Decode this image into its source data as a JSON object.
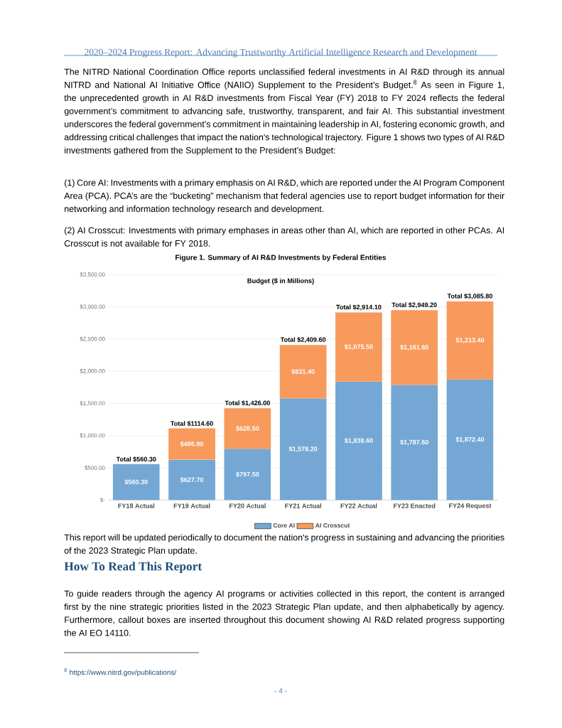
{
  "chart_data": {
    "type": "bar",
    "title": "Figure 1.   Summary of AI R&D Investments by Federal Entities",
    "subtitle": "Budget ($ in Millions)",
    "categories": [
      "FY18 Actual",
      "FY19 Actual",
      "FY20 Actual",
      "FY21 Actual",
      "FY22 Actual",
      "FY23 Enacted",
      "FY24 Request"
    ],
    "stacked": true,
    "series": [
      {
        "name": "Core AI",
        "color": "#74a7d4",
        "values": [
          560.3,
          627.7,
          797.5,
          1578.2,
          1838.6,
          1787.6,
          1872.4
        ],
        "value_labels": [
          "$560.30",
          "$627.70",
          "$797.50",
          "$1,578.20",
          "$1,838.60",
          "$1,787.60",
          "$1,872.40"
        ]
      },
      {
        "name": "AI Crosscut",
        "color": "#f79a5c",
        "values": [
          null,
          486.9,
          628.5,
          831.4,
          1075.5,
          1161.6,
          1213.4
        ],
        "value_labels": [
          null,
          "$486.90",
          "$628.50",
          "$831.40",
          "$1,075.50",
          "$1,161.60",
          "$1,213.40"
        ]
      }
    ],
    "totals": [
      "Total $560.30",
      "Total $1114.60",
      "Total $1,426.00",
      "Total $2,409.60",
      "Total $2,914.10",
      "Total $2,949.20",
      "Total $3,085.80"
    ],
    "ylim": [
      0,
      3500
    ],
    "yticks": [
      {
        "value": 0,
        "label": "$-"
      },
      {
        "value": 500,
        "label": "$500.00"
      },
      {
        "value": 1000,
        "label": "$1,000.00"
      },
      {
        "value": 1500,
        "label": "$1,500.00"
      },
      {
        "value": 2000,
        "label": "$2,000.00"
      },
      {
        "value": 2500,
        "label": "$2,500.00"
      },
      {
        "value": 3000,
        "label": "$3,000.00"
      },
      {
        "value": 3500,
        "label": "$3,500.00"
      }
    ],
    "grid": "y",
    "legend": "bottom",
    "annotations": [
      "2020–2024 Progress Report: Advancing Trustworthy Artificial Intelligence Research and Development",
      "The NITRD National Coordination Office reports unclassified federal investments in AI R&D through its annual NITRD and National AI Initiative Office (NAIIO) Supplement to the President’s Budget.$^{8}$ As seen in Figure 1, the unprecedented growth in AI R&D investments from Fiscal Year (FY) 2018 to FY 2024 reflects the federal government’s commitment to advancing safe, trustworthy, transparent, and fair AI. This substantial investment underscores the federal government’s commitment in maintaining leadership in AI, fostering economic growth, and addressing critical challenges that impact the nation's technological trajectory. Figure 1 shows two types of AI R&D investments gathered from the Supplement to the President’s Budget:",
      "(1) Core AI: Investments with a primary emphasis on AI R&D, which are reported under the AI Program Component Area (PCA). PCA’s are the “bucketing” mechanism that federal agencies use to report budget information for their networking and information technology research and development.",
      "(2) AI Crosscut: Investments with primary emphases in areas other than AI, which are reported in other PCAs. AI Crosscut is not available for FY 2018.",
      "This report will be updated periodically to document the nation's progress in sustaining and advancing the priorities of the 2023 Strategic Plan update.",
      "How To Read This Report",
      "To guide readers through the agency AI programs or activities collected in this report, the content is arranged first by the nine strategic priorities listed in the 2023 Strategic Plan update, and then alphabetically by agency. Furthermore, callout boxes are inserted throughout this document showing AI R&D related progress supporting the AI EO 14110.",
      "$^{8}$ https://www.nitrd.gov/publications/",
      "- 4 -"
    ]
  }
}
